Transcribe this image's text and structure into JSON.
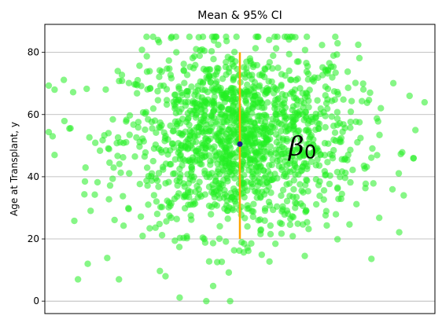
{
  "chart_data": {
    "type": "scatter",
    "title": "Mean & 95% CI",
    "xlabel": "",
    "ylabel": "Age at Transplant, y",
    "ylim": [
      -4,
      89
    ],
    "xlim": [
      -1,
      1
    ],
    "yticks": [
      0,
      20,
      40,
      60,
      80
    ],
    "grid": "y-axis",
    "points": {
      "color": "#22ee22",
      "n": 1500,
      "center_x": 0.0,
      "mean_y": 52,
      "y_min": 0,
      "y_max": 85,
      "sample": [
        {
          "x": -0.95,
          "y": 68
        },
        {
          "x": -0.96,
          "y": 53
        },
        {
          "x": -0.95,
          "y": 47
        },
        {
          "x": -0.83,
          "y": 7
        },
        {
          "x": -0.78,
          "y": 12
        },
        {
          "x": -0.62,
          "y": 7
        },
        {
          "x": -0.42,
          "y": 84
        },
        {
          "x": -0.05,
          "y": 0
        },
        {
          "x": 0.15,
          "y": 84
        },
        {
          "x": 0.23,
          "y": 85
        },
        {
          "x": 0.84,
          "y": 34
        },
        {
          "x": 0.89,
          "y": 46
        },
        {
          "x": 0.9,
          "y": 55
        },
        {
          "x": 0.87,
          "y": 66
        }
      ]
    },
    "mean": {
      "x": 0.0,
      "y": 50.5,
      "color": "#1a1a8c"
    },
    "ci": {
      "low": 20,
      "high": 80,
      "color": "#ffa500"
    },
    "annotation": {
      "symbol": "β",
      "subscript": "0",
      "x": 0.25,
      "y": 50
    }
  }
}
